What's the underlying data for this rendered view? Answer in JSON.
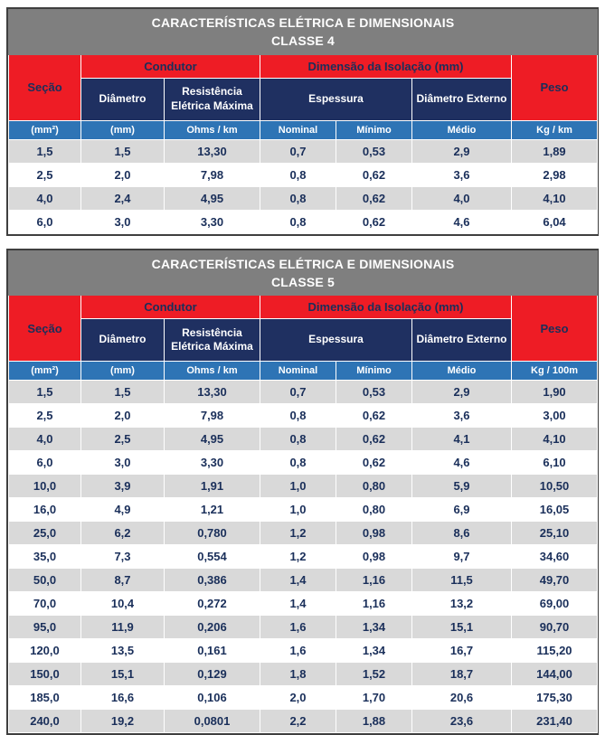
{
  "colors": {
    "title_bar_bg": "#7f7f7f",
    "red_header_bg": "#ee1c25",
    "navy_header_bg": "#1f3061",
    "blue_units_bg": "#2e74b5",
    "alt_row_bg": "#d9d9d9",
    "data_text": "#1a2f5a",
    "outer_border": "#3f3f3f"
  },
  "tables": [
    {
      "title_line1": "CARACTERÍSTICAS ELÉTRICA E DIMENSIONAIS",
      "title_line2": "CLASSE 4",
      "headers": {
        "secao": "Seção",
        "condutor": "Condutor",
        "isolacao": "Dimensão da Isolação (mm)",
        "peso": "Peso",
        "diametro": "Diâmetro",
        "resistencia": "Resistência Elétrica Máxima",
        "espessura": "Espessura",
        "diametro_externo": "Diâmetro Externo"
      },
      "units": {
        "secao": "(mm²)",
        "diametro": "(mm)",
        "resistencia": "Ohms / km",
        "nominal": "Nominal",
        "minimo": "Mínimo",
        "medio": "Médio",
        "peso": "Kg / km"
      },
      "rows": [
        [
          "1,5",
          "1,5",
          "13,30",
          "0,7",
          "0,53",
          "2,9",
          "1,89"
        ],
        [
          "2,5",
          "2,0",
          "7,98",
          "0,8",
          "0,62",
          "3,6",
          "2,98"
        ],
        [
          "4,0",
          "2,4",
          "4,95",
          "0,8",
          "0,62",
          "4,0",
          "4,10"
        ],
        [
          "6,0",
          "3,0",
          "3,30",
          "0,8",
          "0,62",
          "4,6",
          "6,04"
        ]
      ]
    },
    {
      "title_line1": "CARACTERÍSTICAS ELÉTRICA E DIMENSIONAIS",
      "title_line2": "CLASSE 5",
      "headers": {
        "secao": "Seção",
        "condutor": "Condutor",
        "isolacao": "Dimensão da Isolação (mm)",
        "peso": "Peso",
        "diametro": "Diâmetro",
        "resistencia": "Resistência Elétrica Máxima",
        "espessura": "Espessura",
        "diametro_externo": "Diâmetro Externo"
      },
      "units": {
        "secao": "(mm²)",
        "diametro": "(mm)",
        "resistencia": "Ohms / km",
        "nominal": "Nominal",
        "minimo": "Mínimo",
        "medio": "Médio",
        "peso": "Kg / 100m"
      },
      "rows": [
        [
          "1,5",
          "1,5",
          "13,30",
          "0,7",
          "0,53",
          "2,9",
          "1,90"
        ],
        [
          "2,5",
          "2,0",
          "7,98",
          "0,8",
          "0,62",
          "3,6",
          "3,00"
        ],
        [
          "4,0",
          "2,5",
          "4,95",
          "0,8",
          "0,62",
          "4,1",
          "4,10"
        ],
        [
          "6,0",
          "3,0",
          "3,30",
          "0,8",
          "0,62",
          "4,6",
          "6,10"
        ],
        [
          "10,0",
          "3,9",
          "1,91",
          "1,0",
          "0,80",
          "5,9",
          "10,50"
        ],
        [
          "16,0",
          "4,9",
          "1,21",
          "1,0",
          "0,80",
          "6,9",
          "16,05"
        ],
        [
          "25,0",
          "6,2",
          "0,780",
          "1,2",
          "0,98",
          "8,6",
          "25,10"
        ],
        [
          "35,0",
          "7,3",
          "0,554",
          "1,2",
          "0,98",
          "9,7",
          "34,60"
        ],
        [
          "50,0",
          "8,7",
          "0,386",
          "1,4",
          "1,16",
          "11,5",
          "49,70"
        ],
        [
          "70,0",
          "10,4",
          "0,272",
          "1,4",
          "1,16",
          "13,2",
          "69,00"
        ],
        [
          "95,0",
          "11,9",
          "0,206",
          "1,6",
          "1,34",
          "15,1",
          "90,70"
        ],
        [
          "120,0",
          "13,5",
          "0,161",
          "1,6",
          "1,34",
          "16,7",
          "115,20"
        ],
        [
          "150,0",
          "15,1",
          "0,129",
          "1,8",
          "1,52",
          "18,7",
          "144,00"
        ],
        [
          "185,0",
          "16,6",
          "0,106",
          "2,0",
          "1,70",
          "20,6",
          "175,30"
        ],
        [
          "240,0",
          "19,2",
          "0,0801",
          "2,2",
          "1,88",
          "23,6",
          "231,40"
        ]
      ]
    }
  ]
}
